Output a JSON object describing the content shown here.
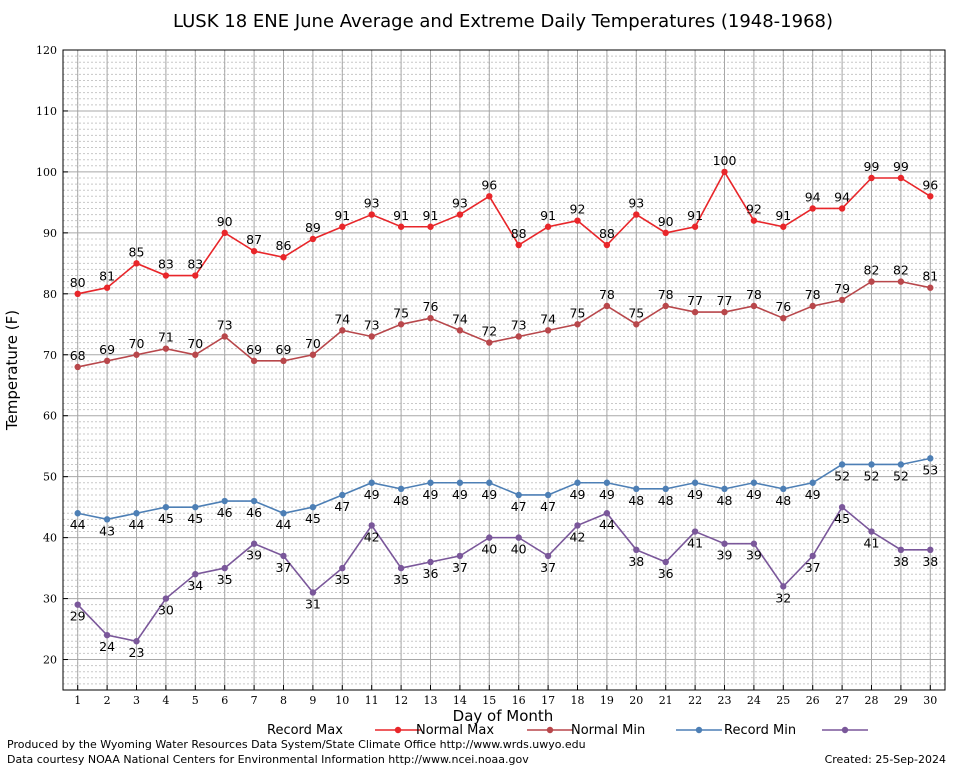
{
  "chart_data": {
    "type": "line",
    "title": "LUSK 18 ENE June Average and Extreme Daily Temperatures (1948-1968)",
    "xlabel": "Day of Month",
    "ylabel": "Temperature (F)",
    "xlim": [
      0.5,
      30.5
    ],
    "ylim": [
      15,
      120
    ],
    "yticks": [
      20,
      30,
      40,
      50,
      60,
      70,
      80,
      90,
      100,
      110,
      120
    ],
    "x": [
      1,
      2,
      3,
      4,
      5,
      6,
      7,
      8,
      9,
      10,
      11,
      12,
      13,
      14,
      15,
      16,
      17,
      18,
      19,
      20,
      21,
      22,
      23,
      24,
      25,
      26,
      27,
      28,
      29,
      30
    ],
    "grid": true,
    "legend_position": "bottom",
    "series": [
      {
        "name": "Record Max",
        "color": "#e8262a",
        "label_pos": "above",
        "values": [
          80,
          81,
          85,
          83,
          83,
          90,
          87,
          86,
          89,
          91,
          93,
          91,
          91,
          93,
          96,
          88,
          91,
          92,
          88,
          93,
          90,
          91,
          100,
          92,
          91,
          94,
          94,
          99,
          99,
          96
        ]
      },
      {
        "name": "Normal Max",
        "color": "#b8474b",
        "label_pos": "above",
        "values": [
          68,
          69,
          70,
          71,
          70,
          73,
          69,
          69,
          70,
          74,
          73,
          75,
          76,
          74,
          72,
          73,
          74,
          75,
          78,
          75,
          78,
          77,
          77,
          78,
          76,
          78,
          79,
          82,
          82,
          81
        ]
      },
      {
        "name": "Normal Min",
        "color": "#4d7fb5",
        "label_pos": "below",
        "values": [
          44,
          43,
          44,
          45,
          45,
          46,
          46,
          44,
          45,
          47,
          49,
          48,
          49,
          49,
          49,
          47,
          47,
          49,
          49,
          48,
          48,
          49,
          48,
          49,
          48,
          49,
          52,
          52,
          52,
          53
        ]
      },
      {
        "name": "Record Min",
        "color": "#7a579a",
        "label_pos": "below",
        "values": [
          29,
          24,
          23,
          30,
          34,
          35,
          39,
          37,
          31,
          35,
          42,
          35,
          36,
          37,
          40,
          40,
          37,
          42,
          44,
          38,
          36,
          41,
          39,
          39,
          32,
          37,
          45,
          41,
          38,
          38
        ]
      }
    ]
  },
  "footer": {
    "produced_by": "Produced by the Wyoming Water Resources Data System/State Climate Office http://www.wrds.uwyo.edu",
    "courtesy": "Data courtesy NOAA National Centers for Environmental Information http://www.ncei.noaa.gov",
    "created": "Created:  25-Sep-2024"
  }
}
